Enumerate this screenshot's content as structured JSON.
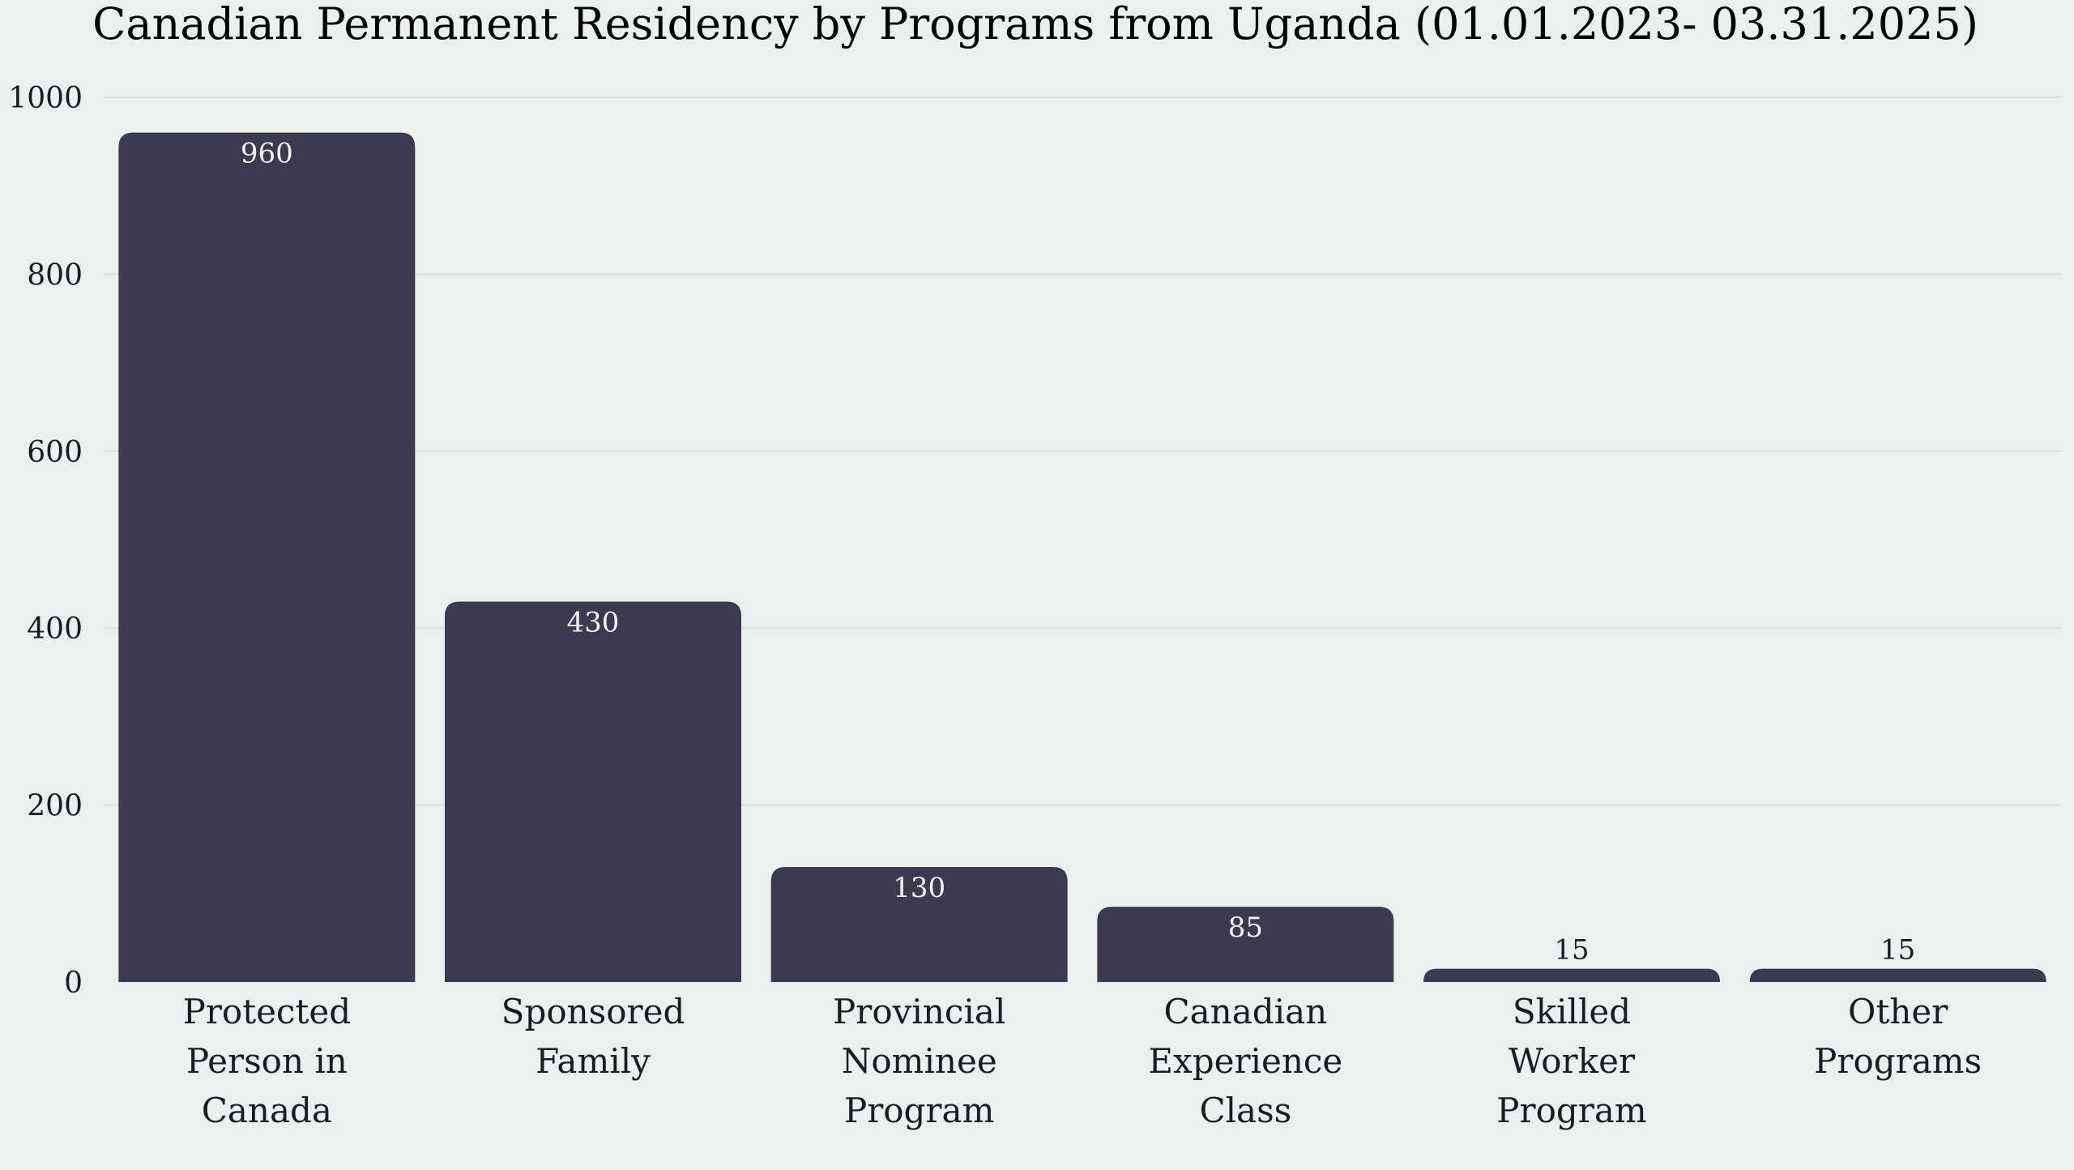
{
  "colors": {
    "background": "#ebefed",
    "bar": "#3d3a50",
    "grid": "#dde2df",
    "text": "#1c1b24",
    "label_inside": "#f4f2f6",
    "label_outside": "#1c1b24"
  },
  "chart_data": {
    "type": "bar",
    "title": "Canadian Permanent Residency by Programs from Uganda (01.01.2023- 03.31.2025)",
    "xlabel": "",
    "ylabel": "",
    "ylim": [
      0,
      1000
    ],
    "yticks": [
      0,
      200,
      400,
      600,
      800,
      1000
    ],
    "grid": true,
    "categories": [
      [
        "Protected",
        "Person in",
        "Canada"
      ],
      [
        "Sponsored",
        "Family"
      ],
      [
        "Provincial",
        "Nominee",
        "Program"
      ],
      [
        "Canadian",
        "Experience",
        "Class"
      ],
      [
        "Skilled",
        "Worker",
        "Program"
      ],
      [
        "Other",
        "Programs"
      ]
    ],
    "values": [
      960,
      430,
      130,
      85,
      15,
      15
    ],
    "data_labels": [
      "960",
      "430",
      "130",
      "85",
      "15",
      "15"
    ]
  }
}
